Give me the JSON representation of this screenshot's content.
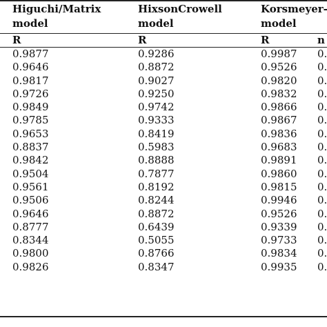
{
  "headers": [
    {
      "line1": "Higuchi/Matrix",
      "line2": "model"
    },
    {
      "line1": "HixsonCrowell",
      "line2": "model"
    },
    {
      "line1": "Korsmeyer-",
      "line2": "model"
    }
  ],
  "subheaders": [
    "R",
    "R",
    "R",
    "n"
  ],
  "rows": [
    [
      "0.9877",
      "0.9286",
      "0.9987",
      "0."
    ],
    [
      "0.9646",
      "0.8872",
      "0.9526",
      "0."
    ],
    [
      "0.9817",
      "0.9027",
      "0.9820",
      "0."
    ],
    [
      "0.9726",
      "0.9250",
      "0.9832",
      "0."
    ],
    [
      "0.9849",
      "0.9742",
      "0.9866",
      "0."
    ],
    [
      "0.9785",
      "0.9333",
      "0.9867",
      "0."
    ],
    [
      "0.9653",
      "0.8419",
      "0.9836",
      "0."
    ],
    [
      "0.8837",
      "0.5983",
      "0.9683",
      "0."
    ],
    [
      "0.9842",
      "0.8888",
      "0.9891",
      "0."
    ],
    [
      "0.9504",
      "0.7877",
      "0.9860",
      "0."
    ],
    [
      "0.9561",
      "0.8192",
      "0.9815",
      "0."
    ],
    [
      "0.9506",
      "0.8244",
      "0.9946",
      "0."
    ],
    [
      "0.9646",
      "0.8872",
      "0.9526",
      "0."
    ],
    [
      "0.8777",
      "0.6439",
      "0.9339",
      "0."
    ],
    [
      "0.8344",
      "0.5055",
      "0.9733",
      "0."
    ],
    [
      "0.9800",
      "0.8766",
      "0.9834",
      "0."
    ],
    [
      "0.9826",
      "0.8347",
      "0.9935",
      "0."
    ]
  ]
}
